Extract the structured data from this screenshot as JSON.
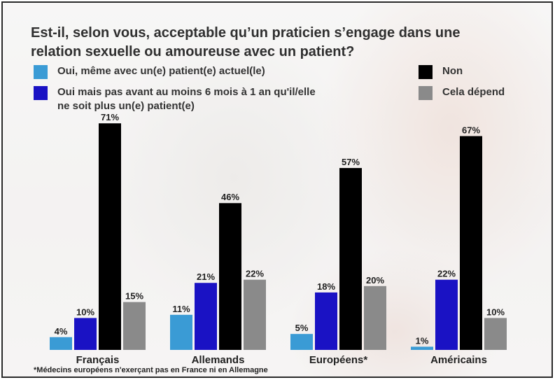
{
  "chart_data": {
    "type": "bar",
    "title_lines": [
      "Est-il, selon vous, acceptable qu’un praticien s’engage dans une",
      "relation sexuelle ou amoureuse avec un patient?"
    ],
    "categories": [
      "Français",
      "Allemands",
      "Européens*",
      "Américains"
    ],
    "series": [
      {
        "name": "Oui, même avec un(e) patient(e) actuel(le)",
        "color": "#3a9bd5",
        "values": [
          4,
          11,
          5,
          1
        ],
        "labels": [
          "4%",
          "11%",
          "5%",
          "1%"
        ]
      },
      {
        "name": "Oui mais pas avant au moins 6 mois à 1 an qu'il/elle ne soit plus un(e) patient(e)",
        "name_lines": [
          "Oui mais pas avant au moins 6 mois à 1 an qu'il/elle",
          "ne soit plus un(e) patient(e)"
        ],
        "color": "#1a12c4",
        "values": [
          10,
          21,
          18,
          22
        ],
        "labels": [
          "10%",
          "21%",
          "18%",
          "22%"
        ]
      },
      {
        "name": "Non",
        "color": "#000000",
        "values": [
          71,
          46,
          57,
          67
        ],
        "labels": [
          "71%",
          "46%",
          "57%",
          "67%"
        ]
      },
      {
        "name": "Cela dépend",
        "color": "#8a8a8a",
        "values": [
          15,
          22,
          20,
          10
        ],
        "labels": [
          "15%",
          "22%",
          "20%",
          "10%"
        ]
      }
    ],
    "ylim": [
      0,
      100
    ],
    "grid": false,
    "legend_position": "top"
  },
  "footnote": "*Médecins européens n'exerçant pas en France ni en Allemagne"
}
